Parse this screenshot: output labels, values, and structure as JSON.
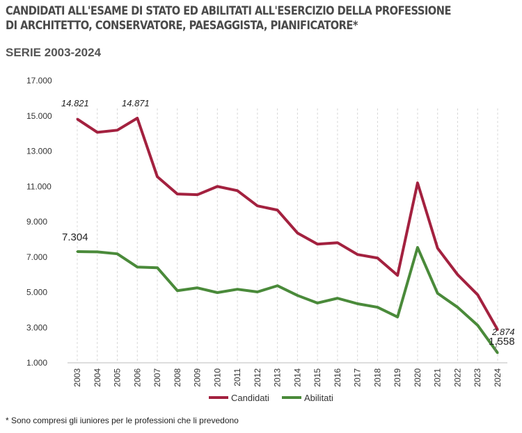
{
  "title_lines": [
    "CANDIDATI ALL'ESAME DI STATO ED ABILITATI ALL'ESERCIZIO DELLA PROFESSIONE",
    "DI ARCHITETTO, CONSERVATORE, PAESAGGISTA, PIANIFICATORE*"
  ],
  "subtitle": "SERIE 2003-2024",
  "footnote": "* Sono compresi gli iuniores per le professioni che li prevedono",
  "chart_data": {
    "type": "line",
    "categories": [
      "2003",
      "2004",
      "2005",
      "2006",
      "2007",
      "2008",
      "2009",
      "2010",
      "2011",
      "2012",
      "2013",
      "2014",
      "2015",
      "2016",
      "2017",
      "2018",
      "2019",
      "2020",
      "2021",
      "2022",
      "2023",
      "2024"
    ],
    "ylim": [
      1000,
      17000
    ],
    "yticks": [
      "1.000",
      "3.000",
      "5.000",
      "7.000",
      "9.000",
      "11.000",
      "13.000",
      "15.000",
      "17.000"
    ],
    "ytick_values": [
      1000,
      3000,
      5000,
      7000,
      9000,
      11000,
      13000,
      15000,
      17000
    ],
    "grid": "vertical dashed",
    "legend": "bottom",
    "series": [
      {
        "name": "Candidati",
        "color": "#a3213f",
        "values": [
          14821,
          14070,
          14190,
          14871,
          11550,
          10570,
          10530,
          11000,
          10760,
          9900,
          9660,
          8360,
          7730,
          7810,
          7140,
          6940,
          5960,
          11200,
          7500,
          6000,
          4860,
          2874
        ]
      },
      {
        "name": "Abilitati",
        "color": "#4a8a3a",
        "values": [
          7304,
          7290,
          7180,
          6430,
          6390,
          5090,
          5250,
          4980,
          5170,
          5020,
          5370,
          4820,
          4390,
          4660,
          4350,
          4150,
          3600,
          7540,
          4940,
          4150,
          3130,
          1558
        ]
      }
    ],
    "annotations": [
      {
        "series": 0,
        "index": 0,
        "text": "14.821"
      },
      {
        "series": 0,
        "index": 3,
        "text": "14.871"
      },
      {
        "series": 0,
        "index": 21,
        "text": "2.874"
      },
      {
        "series": 1,
        "index": 0,
        "text": "7.304"
      },
      {
        "series": 1,
        "index": 21,
        "text": "1.558"
      }
    ]
  }
}
